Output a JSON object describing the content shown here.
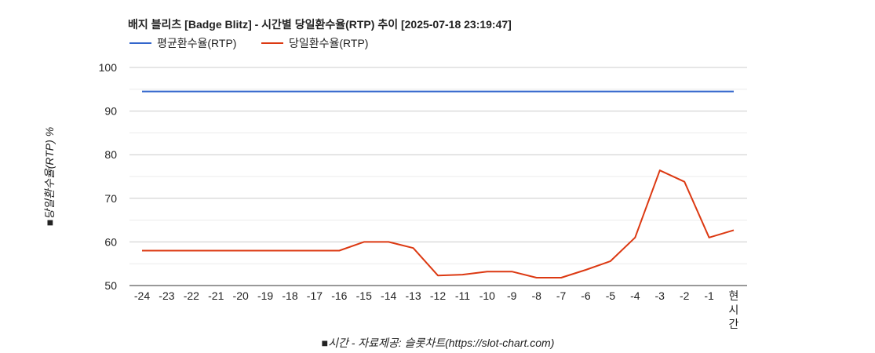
{
  "chart_data": {
    "type": "line",
    "title": "배지 블리츠 [Badge Blitz] - 시간별 당일환수율(RTP) 추이 [2025-07-18 23:19:47]",
    "xlabel": "■시간 - 자료제공: 슬롯차트(https://slot-chart.com)",
    "ylabel": "■당일환수율(RTP) %",
    "ylim": [
      50,
      100
    ],
    "yticks": [
      "100",
      "90",
      "80",
      "70",
      "60",
      "50"
    ],
    "categories": [
      "-24",
      "-23",
      "-22",
      "-21",
      "-20",
      "-19",
      "-18",
      "-17",
      "-16",
      "-15",
      "-14",
      "-13",
      "-12",
      "-11",
      "-10",
      "-9",
      "-8",
      "-7",
      "-6",
      "-5",
      "-4",
      "-3",
      "-2",
      "-1",
      "현시간"
    ],
    "series": [
      {
        "name": "평균환수율(RTP)",
        "color": "#3366cc",
        "values": [
          94.5,
          94.5,
          94.5,
          94.5,
          94.5,
          94.5,
          94.5,
          94.5,
          94.5,
          94.5,
          94.5,
          94.5,
          94.5,
          94.5,
          94.5,
          94.5,
          94.5,
          94.5,
          94.5,
          94.5,
          94.5,
          94.5,
          94.5,
          94.5,
          94.5
        ]
      },
      {
        "name": "당일환수율(RTP)",
        "color": "#dc3912",
        "values": [
          58,
          58,
          58,
          58,
          58,
          58,
          58,
          58,
          58,
          60,
          60,
          58.6,
          52.3,
          52.5,
          53.2,
          53.2,
          51.8,
          51.8,
          53.6,
          55.6,
          61,
          76.4,
          73.8,
          61,
          62.7
        ]
      }
    ],
    "grid": true,
    "legend": "top-left"
  }
}
